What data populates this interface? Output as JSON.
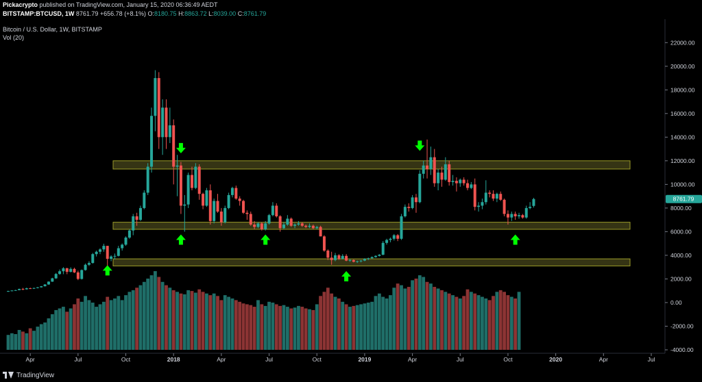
{
  "header": {
    "publisher": "Pickacrypto",
    "published_text": "published on TradingView.com, January 15, 2020 06:36:49 AEDT",
    "symbol": "BITSTAMP:BTCUSD, 1W",
    "last": "8761.79",
    "change": "+656.78 (+8.1%)",
    "open_label": "O:",
    "open": "8180.75",
    "high_label": "H:",
    "high": "8863.72",
    "low_label": "L:",
    "low": "8039.00",
    "close_label": "C:",
    "close": "8761.79"
  },
  "legend": {
    "title": "Bitcoin / U.S. Dollar, 1W, BITSTAMP",
    "volume": "Vol (20)"
  },
  "footer": {
    "brand": "TradingView"
  },
  "colors": {
    "up": "#26a69a",
    "down": "#ef5350",
    "vol_up": "#1f6e68",
    "vol_down": "#8c3434",
    "zone_fill": "#3b3a16",
    "zone_stroke": "#9a9a28",
    "arrow": "#00ff00",
    "price_tag": "#26a69a"
  },
  "chart_data": {
    "type": "candlestick",
    "title": "Bitcoin / U.S. Dollar, 1W, BITSTAMP",
    "y_axis": {
      "ylim": [
        -4000,
        23000
      ],
      "ticks": [
        22000,
        20000,
        18000,
        16000,
        14000,
        12000,
        10000,
        8000,
        6000,
        4000,
        2000,
        0,
        -2000,
        -4000
      ],
      "tick_labels": [
        "22000.00",
        "20000.00",
        "18000.00",
        "16000.00",
        "14000.00",
        "12000.00",
        "10000.00",
        "8000.00",
        "6000.00",
        "4000.00",
        "2000.00",
        "0.00",
        "-2000.00",
        "-4000.00"
      ]
    },
    "x_axis": {
      "ticks": [
        "Apr",
        "Jul",
        "Oct",
        "2018",
        "Apr",
        "Jul",
        "Oct",
        "2019",
        "Apr",
        "Jul",
        "Oct",
        "2020",
        "Apr",
        "Jul"
      ],
      "tick_index": [
        6,
        19,
        32,
        45,
        58,
        71,
        84,
        97,
        110,
        123,
        136,
        149,
        162,
        175
      ]
    },
    "last_price": 8761.79,
    "series": [
      {
        "name": "price",
        "values": [
          [
            950,
            1000,
            900,
            980
          ],
          [
            980,
            1040,
            960,
            1020
          ],
          [
            1020,
            1080,
            1000,
            1050
          ],
          [
            1050,
            1180,
            1040,
            1150
          ],
          [
            1150,
            1240,
            1050,
            1120
          ],
          [
            1120,
            1260,
            1100,
            1210
          ],
          [
            1210,
            1260,
            1150,
            1180
          ],
          [
            1180,
            1260,
            1150,
            1230
          ],
          [
            1230,
            1320,
            1200,
            1290
          ],
          [
            1290,
            1400,
            1270,
            1380
          ],
          [
            1380,
            1560,
            1360,
            1530
          ],
          [
            1530,
            1800,
            1500,
            1770
          ],
          [
            1770,
            2100,
            1750,
            2050
          ],
          [
            2050,
            2500,
            2000,
            2420
          ],
          [
            2420,
            2800,
            2350,
            2650
          ],
          [
            2650,
            3000,
            2400,
            2900
          ],
          [
            2900,
            2950,
            2400,
            2600
          ],
          [
            2600,
            2980,
            2550,
            2850
          ],
          [
            2850,
            2950,
            2500,
            2550
          ],
          [
            2550,
            2700,
            1900,
            2000
          ],
          [
            2000,
            2800,
            1950,
            2750
          ],
          [
            2750,
            3300,
            2700,
            3200
          ],
          [
            3200,
            3500,
            3100,
            3350
          ],
          [
            3350,
            4200,
            3300,
            4100
          ],
          [
            4100,
            4400,
            3900,
            4300
          ],
          [
            4300,
            4600,
            4100,
            4500
          ],
          [
            4500,
            4980,
            4300,
            4800
          ],
          [
            4800,
            4800,
            3000,
            3700
          ],
          [
            3700,
            4000,
            3500,
            3900
          ],
          [
            3900,
            4150,
            3650,
            3950
          ],
          [
            3950,
            4800,
            3900,
            4600
          ],
          [
            4600,
            5000,
            4400,
            4900
          ],
          [
            4900,
            5600,
            4800,
            5500
          ],
          [
            5500,
            6200,
            5400,
            6100
          ],
          [
            6100,
            7500,
            5700,
            7300
          ],
          [
            7300,
            7600,
            6500,
            7000
          ],
          [
            7000,
            8200,
            6900,
            8000
          ],
          [
            8000,
            9500,
            7900,
            9300
          ],
          [
            9300,
            11800,
            9100,
            11500
          ],
          [
            11500,
            16500,
            11000,
            15800
          ],
          [
            15800,
            19666,
            14500,
            19000
          ],
          [
            19000,
            19500,
            13000,
            14000
          ],
          [
            14000,
            17200,
            12500,
            16500
          ],
          [
            16500,
            17200,
            13000,
            14000
          ],
          [
            14000,
            16500,
            13500,
            15000
          ],
          [
            15000,
            15500,
            10000,
            11500
          ],
          [
            11500,
            12500,
            9000,
            11600
          ],
          [
            11600,
            11900,
            7500,
            8200
          ],
          [
            8200,
            9100,
            6000,
            8300
          ],
          [
            8300,
            11000,
            8000,
            10800
          ],
          [
            10800,
            11500,
            9500,
            9700
          ],
          [
            9700,
            11800,
            9600,
            11500
          ],
          [
            11500,
            11700,
            8700,
            9200
          ],
          [
            9200,
            9300,
            7900,
            8200
          ],
          [
            8200,
            9700,
            8100,
            9500
          ],
          [
            9500,
            10000,
            6600,
            6900
          ],
          [
            6900,
            8800,
            6700,
            8600
          ],
          [
            8600,
            9200,
            7600,
            7700
          ],
          [
            7700,
            8000,
            6500,
            6800
          ],
          [
            6800,
            8200,
            6700,
            8000
          ],
          [
            8000,
            9300,
            7900,
            9100
          ],
          [
            9100,
            9800,
            8900,
            9700
          ],
          [
            9700,
            9900,
            8700,
            8800
          ],
          [
            8800,
            9000,
            8200,
            8600
          ],
          [
            8600,
            8700,
            7500,
            7600
          ],
          [
            7600,
            7800,
            7000,
            7500
          ],
          [
            7500,
            7700,
            6500,
            6600
          ],
          [
            6600,
            6900,
            6200,
            6400
          ],
          [
            6400,
            6800,
            6300,
            6700
          ],
          [
            6700,
            6800,
            6100,
            6200
          ],
          [
            6200,
            6900,
            6100,
            6700
          ],
          [
            6700,
            7500,
            6600,
            7400
          ],
          [
            7400,
            8500,
            7300,
            8200
          ],
          [
            8200,
            8400,
            7200,
            7300
          ],
          [
            7300,
            7400,
            6000,
            6300
          ],
          [
            6300,
            6800,
            6200,
            6600
          ],
          [
            6600,
            7400,
            6500,
            7100
          ],
          [
            7100,
            7200,
            6400,
            6500
          ],
          [
            6500,
            6700,
            6300,
            6600
          ],
          [
            6600,
            6900,
            6500,
            6700
          ],
          [
            6700,
            6800,
            6400,
            6500
          ],
          [
            6500,
            6600,
            6300,
            6400
          ],
          [
            6400,
            6700,
            6300,
            6500
          ],
          [
            6500,
            6600,
            6200,
            6300
          ],
          [
            6300,
            6500,
            6200,
            6400
          ],
          [
            6400,
            6500,
            5600,
            5600
          ],
          [
            5600,
            5700,
            4300,
            4400
          ],
          [
            4400,
            4500,
            3600,
            3800
          ],
          [
            3800,
            4300,
            3200,
            3600
          ],
          [
            3600,
            4200,
            3500,
            4000
          ],
          [
            4000,
            4100,
            3600,
            3700
          ],
          [
            3700,
            4100,
            3650,
            3950
          ],
          [
            3950,
            4100,
            3500,
            3550
          ],
          [
            3550,
            3700,
            3450,
            3600
          ],
          [
            3600,
            3650,
            3400,
            3450
          ],
          [
            3450,
            3550,
            3350,
            3500
          ],
          [
            3500,
            3600,
            3400,
            3550
          ],
          [
            3550,
            3750,
            3500,
            3700
          ],
          [
            3700,
            3800,
            3600,
            3750
          ],
          [
            3750,
            3900,
            3700,
            3850
          ],
          [
            3850,
            4000,
            3800,
            3950
          ],
          [
            3950,
            4100,
            3900,
            4050
          ],
          [
            4050,
            5200,
            4000,
            5050
          ],
          [
            5050,
            5400,
            4900,
            5300
          ],
          [
            5300,
            5500,
            5100,
            5400
          ],
          [
            5400,
            5800,
            5250,
            5700
          ],
          [
            5700,
            5800,
            5200,
            5400
          ],
          [
            5400,
            7500,
            5300,
            7300
          ],
          [
            7300,
            8300,
            7200,
            8100
          ],
          [
            8100,
            8400,
            7700,
            8000
          ],
          [
            8000,
            9100,
            7900,
            8900
          ],
          [
            8900,
            9200,
            7600,
            8500
          ],
          [
            8500,
            11200,
            8400,
            10900
          ],
          [
            10900,
            12000,
            10500,
            11600
          ],
          [
            11600,
            13800,
            10500,
            11300
          ],
          [
            11300,
            13200,
            10800,
            12300
          ],
          [
            12300,
            13000,
            9800,
            10100
          ],
          [
            10100,
            11300,
            9500,
            11000
          ],
          [
            11000,
            11500,
            9800,
            10400
          ],
          [
            10400,
            12300,
            10300,
            11700
          ],
          [
            11700,
            12000,
            9900,
            10200
          ],
          [
            10200,
            10800,
            9900,
            10300
          ],
          [
            10300,
            10600,
            9400,
            10100
          ],
          [
            10100,
            10500,
            9800,
            10400
          ],
          [
            10400,
            10600,
            9900,
            10100
          ],
          [
            10100,
            10400,
            9500,
            9700
          ],
          [
            9700,
            10200,
            9600,
            10000
          ],
          [
            10000,
            10500,
            7800,
            8100
          ],
          [
            8100,
            8500,
            7700,
            8200
          ],
          [
            8200,
            8800,
            7900,
            8500
          ],
          [
            8500,
            10350,
            8300,
            9300
          ],
          [
            9300,
            9500,
            8900,
            9200
          ],
          [
            9200,
            9500,
            8600,
            8800
          ],
          [
            8800,
            9300,
            8500,
            9200
          ],
          [
            9200,
            9400,
            8600,
            8700
          ],
          [
            8700,
            8800,
            7300,
            7500
          ],
          [
            7500,
            7800,
            6600,
            7200
          ],
          [
            7200,
            7700,
            6900,
            7500
          ],
          [
            7500,
            7700,
            7000,
            7300
          ],
          [
            7300,
            7600,
            7100,
            7400
          ],
          [
            7400,
            7500,
            7100,
            7200
          ],
          [
            7200,
            8200,
            7100,
            8000
          ],
          [
            8000,
            8500,
            7900,
            8100
          ],
          [
            8180.75,
            8863.72,
            8039.0,
            8761.79
          ]
        ]
      },
      {
        "name": "volume",
        "values": [
          18,
          20,
          19,
          24,
          22,
          20,
          26,
          23,
          28,
          31,
          33,
          38,
          43,
          48,
          50,
          52,
          46,
          50,
          55,
          62,
          58,
          65,
          60,
          57,
          52,
          55,
          58,
          64,
          60,
          62,
          65,
          60,
          66,
          70,
          72,
          75,
          78,
          82,
          86,
          90,
          95,
          88,
          82,
          78,
          75,
          72,
          70,
          68,
          67,
          72,
          71,
          69,
          73,
          70,
          68,
          66,
          68,
          65,
          60,
          66,
          64,
          62,
          60,
          58,
          56,
          55,
          54,
          52,
          60,
          55,
          53,
          58,
          57,
          55,
          53,
          54,
          52,
          50,
          51,
          53,
          52,
          50,
          49,
          48,
          55,
          65,
          70,
          75,
          68,
          64,
          62,
          58,
          55,
          52,
          53,
          54,
          55,
          56,
          57,
          58,
          65,
          68,
          64,
          62,
          66,
          75,
          80,
          78,
          74,
          76,
          84,
          86,
          90,
          88,
          82,
          80,
          76,
          74,
          72,
          70,
          68,
          66,
          64,
          62,
          65,
          73,
          70,
          68,
          66,
          64,
          62,
          60,
          65,
          70,
          72,
          70,
          66,
          64,
          62,
          70
        ]
      }
    ],
    "zones": [
      {
        "low": 11300,
        "high": 12000
      },
      {
        "low": 6200,
        "high": 6800
      },
      {
        "low": 3100,
        "high": 3700
      }
    ],
    "annotations": [
      {
        "type": "arrow-up",
        "index": 27,
        "value": 2700
      },
      {
        "type": "arrow-down",
        "index": 47,
        "value": 13100
      },
      {
        "type": "arrow-up",
        "index": 47,
        "value": 5300
      },
      {
        "type": "arrow-up",
        "index": 70,
        "value": 5300
      },
      {
        "type": "arrow-up",
        "index": 92,
        "value": 2200
      },
      {
        "type": "arrow-down",
        "index": 112,
        "value": 13300
      },
      {
        "type": "arrow-up",
        "index": 138,
        "value": 5300
      }
    ]
  }
}
